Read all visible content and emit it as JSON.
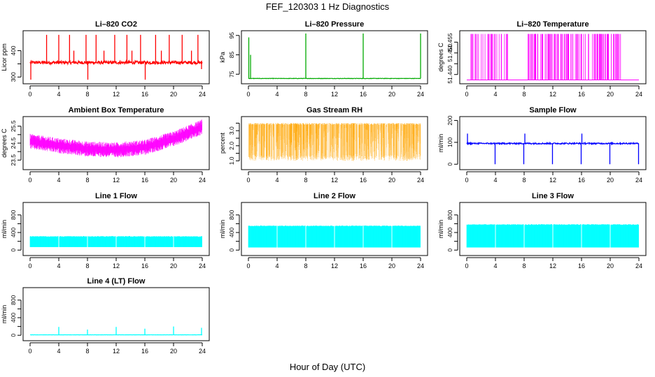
{
  "figure": {
    "title": "FEF_120303  1 Hz Diagnostics",
    "xlabel": "Hour of Day (UTC)"
  },
  "chart_data": [
    {
      "type": "line",
      "title": "Li–820 CO2",
      "ylabel": "Licor ppm",
      "color": "#ff0000",
      "xlim": [
        0,
        24
      ],
      "ylim": [
        285,
        465
      ],
      "xticks": [
        0,
        4,
        8,
        12,
        16,
        20,
        24
      ],
      "yticks": [
        300,
        350,
        400
      ],
      "ytick_labels": [
        "300",
        "",
        "400"
      ],
      "baseline": 355,
      "noise": 6,
      "spikes": [
        {
          "x": 0.1,
          "y": 290
        },
        {
          "x": 2.3,
          "y": 460
        },
        {
          "x": 4.0,
          "y": 460
        },
        {
          "x": 5.5,
          "y": 460
        },
        {
          "x": 6.1,
          "y": 400
        },
        {
          "x": 7.8,
          "y": 460
        },
        {
          "x": 8.05,
          "y": 290
        },
        {
          "x": 9.2,
          "y": 460
        },
        {
          "x": 10.3,
          "y": 400
        },
        {
          "x": 11.8,
          "y": 460
        },
        {
          "x": 13.5,
          "y": 460
        },
        {
          "x": 14.2,
          "y": 400
        },
        {
          "x": 15.4,
          "y": 460
        },
        {
          "x": 16.05,
          "y": 290
        },
        {
          "x": 17.5,
          "y": 460
        },
        {
          "x": 18.3,
          "y": 400
        },
        {
          "x": 19.4,
          "y": 460
        },
        {
          "x": 21.2,
          "y": 460
        },
        {
          "x": 22.5,
          "y": 400
        },
        {
          "x": 23.4,
          "y": 460
        },
        {
          "x": 23.9,
          "y": 330
        }
      ]
    },
    {
      "type": "line",
      "title": "Li–820 Pressure",
      "ylabel": "kPa",
      "color": "#00aa00",
      "xlim": [
        0,
        24
      ],
      "ylim": [
        71.5,
        96
      ],
      "xticks": [
        0,
        4,
        8,
        12,
        16,
        20,
        24
      ],
      "yticks": [
        75,
        85,
        95
      ],
      "ytick_labels": [
        "75",
        "85",
        "95"
      ],
      "baseline": 72.8,
      "noise": 0.1,
      "spikes": [
        {
          "x": 0.05,
          "y": 94
        },
        {
          "x": 0.3,
          "y": 85
        },
        {
          "x": 8.0,
          "y": 96
        },
        {
          "x": 16.0,
          "y": 96
        },
        {
          "x": 24.0,
          "y": 96
        }
      ]
    },
    {
      "type": "line",
      "title": "Li–820 Temperature",
      "ylabel": "degrees C",
      "color": "#ff00ff",
      "xlim": [
        0,
        24
      ],
      "ylim": [
        51.437,
        51.459
      ],
      "xticks": [
        0,
        4,
        8,
        12,
        16,
        20,
        24
      ],
      "yticks": [
        51.44,
        51.445,
        51.45,
        51.455
      ],
      "ytick_labels": [
        "51.440",
        "",
        "51.450",
        "51.455"
      ],
      "baseline": 51.4375,
      "top": 51.4588
    },
    {
      "type": "line",
      "title": "Ambient Box Temperature",
      "ylabel": "degrees C",
      "color": "#ff00ff",
      "xlim": [
        0,
        24
      ],
      "ylim": [
        23.1,
        25.9
      ],
      "xticks": [
        0,
        4,
        8,
        12,
        16,
        20,
        24
      ],
      "yticks": [
        23.5,
        24.0,
        24.5,
        25.0,
        25.5
      ],
      "ytick_labels": [
        "23.5",
        "",
        "24.5",
        "",
        "25.5"
      ],
      "trend": {
        "x": [
          0,
          4,
          8,
          12,
          16,
          20,
          24
        ],
        "y": [
          24.6,
          24.35,
          24.15,
          24.1,
          24.25,
          24.75,
          25.45
        ]
      },
      "band": 0.45
    },
    {
      "type": "scatter",
      "title": "Gas Stream RH",
      "ylabel": "percent",
      "color": "#ffa500",
      "xlim": [
        0,
        24
      ],
      "ylim": [
        0.6,
        3.75
      ],
      "xticks": [
        0,
        4,
        8,
        12,
        16,
        20,
        24
      ],
      "yticks": [
        1.0,
        1.5,
        2.0,
        2.5,
        3.0,
        3.5
      ],
      "ytick_labels": [
        "1.0",
        "",
        "2.0",
        "",
        "3.0",
        ""
      ],
      "top": 3.5,
      "low": 1.0
    },
    {
      "type": "line",
      "title": "Sample Flow",
      "ylabel": "ml/min",
      "color": "#0000ff",
      "xlim": [
        0,
        24
      ],
      "ylim": [
        -12,
        205
      ],
      "xticks": [
        0,
        4,
        8,
        12,
        16,
        20,
        24
      ],
      "yticks": [
        0,
        100,
        200
      ],
      "ytick_labels": [
        "0",
        "100",
        "200"
      ],
      "baseline": 95,
      "noise": 3,
      "spikes": [
        {
          "x": 0.1,
          "y": 140
        },
        {
          "x": 3.95,
          "y": 0
        },
        {
          "x": 7.95,
          "y": 0
        },
        {
          "x": 8.1,
          "y": 140
        },
        {
          "x": 11.95,
          "y": 0
        },
        {
          "x": 15.95,
          "y": 0
        },
        {
          "x": 16.05,
          "y": 140
        },
        {
          "x": 19.95,
          "y": 0
        },
        {
          "x": 23.95,
          "y": 0
        }
      ]
    },
    {
      "type": "area",
      "title": "Line 1 Flow",
      "ylabel": "ml/min",
      "color": "#00ffff",
      "xlim": [
        0,
        24
      ],
      "ylim": [
        -60,
        1020
      ],
      "xticks": [
        0,
        4,
        8,
        12,
        16,
        20,
        24
      ],
      "yticks": [
        0,
        200,
        400,
        600,
        800
      ],
      "ytick_labels": [
        "0",
        "",
        "400",
        "",
        "800"
      ],
      "low": 70,
      "high": 320,
      "gaps": [
        4,
        8,
        12,
        16,
        20
      ]
    },
    {
      "type": "area",
      "title": "Line 2 Flow",
      "ylabel": "ml/min",
      "color": "#00ffff",
      "xlim": [
        0,
        24
      ],
      "ylim": [
        -60,
        1020
      ],
      "xticks": [
        0,
        4,
        8,
        12,
        16,
        20,
        24
      ],
      "yticks": [
        0,
        200,
        400,
        600,
        800
      ],
      "ytick_labels": [
        "0",
        "",
        "400",
        "",
        "800"
      ],
      "low": 60,
      "high": 560,
      "gaps": [
        4,
        8,
        12,
        16,
        20
      ]
    },
    {
      "type": "area",
      "title": "Line 3 Flow",
      "ylabel": "ml/min",
      "color": "#00ffff",
      "xlim": [
        0,
        24
      ],
      "ylim": [
        -60,
        1020
      ],
      "xticks": [
        0,
        4,
        8,
        12,
        16,
        20,
        24
      ],
      "yticks": [
        0,
        200,
        400,
        600,
        800
      ],
      "ytick_labels": [
        "0",
        "",
        "400",
        "",
        "800"
      ],
      "low": 60,
      "high": 590,
      "gaps": [
        4,
        8,
        12,
        16,
        20
      ]
    },
    {
      "type": "line",
      "title": "Line 4 (LT) Flow",
      "ylabel": "ml/min",
      "color": "#00ffff",
      "xlim": [
        0,
        24
      ],
      "ylim": [
        -60,
        1020
      ],
      "xticks": [
        0,
        4,
        8,
        12,
        16,
        20,
        24
      ],
      "yticks": [
        0,
        200,
        400,
        600,
        800
      ],
      "ytick_labels": [
        "0",
        "",
        "400",
        "",
        "800"
      ],
      "baseline": 10,
      "noise": 2,
      "spikes": [
        {
          "x": 4.0,
          "y": 190
        },
        {
          "x": 8.0,
          "y": 130
        },
        {
          "x": 12.0,
          "y": 190
        },
        {
          "x": 16.0,
          "y": 150
        },
        {
          "x": 20.0,
          "y": 200
        },
        {
          "x": 23.9,
          "y": 170
        }
      ]
    }
  ]
}
